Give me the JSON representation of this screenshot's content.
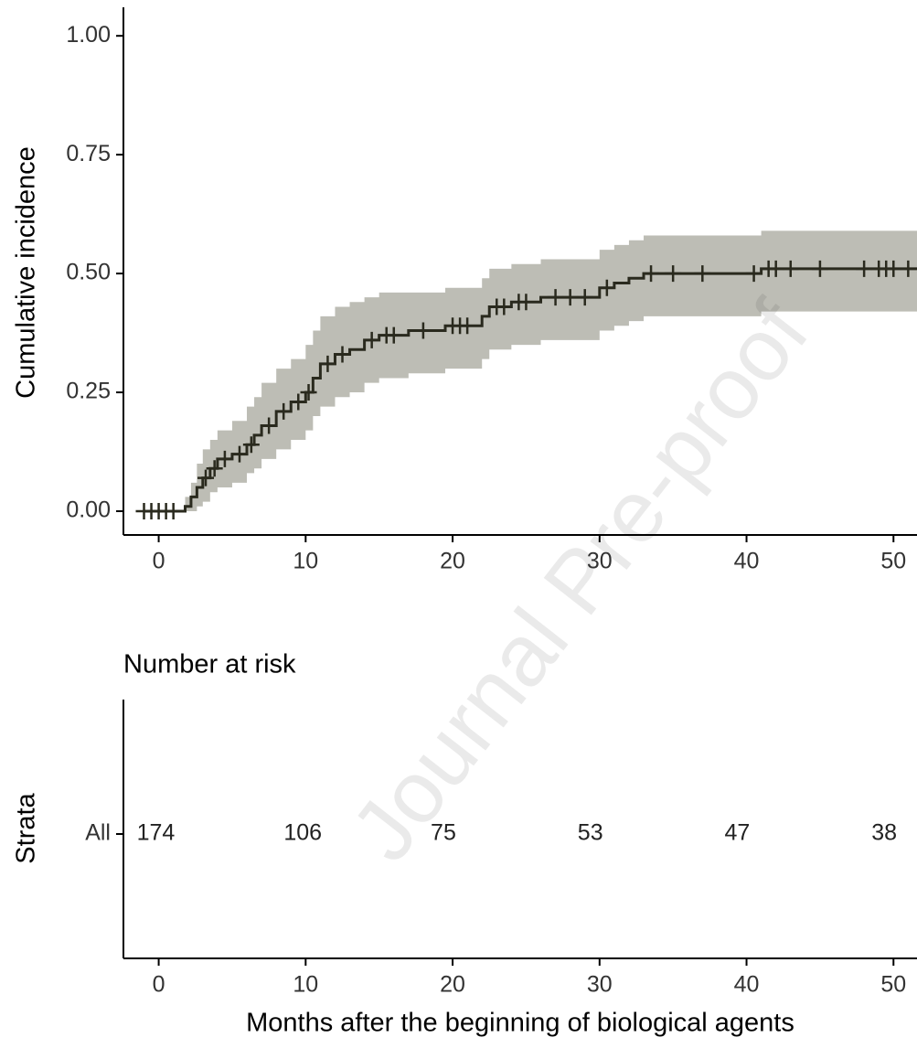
{
  "watermark": "Journal Pre-proof",
  "chart_data": [
    {
      "type": "step",
      "ylabel": "Cumulative incidence",
      "xlim": [
        -2.4,
        51.6
      ],
      "ylim": [
        -0.05,
        1.06
      ],
      "xticks": [
        0,
        10,
        20,
        30,
        40,
        50
      ],
      "yticks": [
        {
          "value": 0,
          "label": "0.00"
        },
        {
          "value": 0.25,
          "label": "0.25"
        },
        {
          "value": 0.5,
          "label": "0.50"
        },
        {
          "value": 0.75,
          "label": "0.75"
        },
        {
          "value": 1,
          "label": "1.00"
        }
      ],
      "line_color": "#2a2a1e",
      "band_color": "#bdbdb5",
      "x": [
        -1,
        1.8,
        2.2,
        2.6,
        3,
        3.5,
        4,
        5,
        6,
        6.5,
        7,
        8,
        9,
        10,
        10.5,
        11,
        12,
        13,
        14,
        15,
        17,
        19.5,
        22,
        22.5,
        24,
        26,
        30,
        31,
        32,
        33,
        41
      ],
      "estimate": [
        0,
        0.01,
        0.03,
        0.05,
        0.07,
        0.09,
        0.11,
        0.12,
        0.14,
        0.16,
        0.18,
        0.21,
        0.23,
        0.25,
        0.28,
        0.31,
        0.33,
        0.34,
        0.36,
        0.37,
        0.38,
        0.39,
        0.41,
        0.43,
        0.44,
        0.45,
        0.47,
        0.48,
        0.49,
        0.5,
        0.51
      ],
      "lower": [
        0,
        0,
        0,
        0.01,
        0.02,
        0.04,
        0.05,
        0.06,
        0.08,
        0.09,
        0.11,
        0.13,
        0.15,
        0.17,
        0.2,
        0.22,
        0.24,
        0.25,
        0.27,
        0.28,
        0.29,
        0.3,
        0.32,
        0.34,
        0.35,
        0.36,
        0.38,
        0.39,
        0.4,
        0.41,
        0.42
      ],
      "upper": [
        0,
        0.03,
        0.06,
        0.1,
        0.13,
        0.15,
        0.17,
        0.19,
        0.22,
        0.24,
        0.27,
        0.3,
        0.32,
        0.35,
        0.38,
        0.41,
        0.43,
        0.44,
        0.45,
        0.46,
        0.46,
        0.47,
        0.49,
        0.51,
        0.52,
        0.53,
        0.55,
        0.56,
        0.57,
        0.58,
        0.59
      ],
      "censor_x": [
        -1,
        -0.5,
        0,
        0.5,
        1,
        3.2,
        3.8,
        4.5,
        5.5,
        6.3,
        7.5,
        8.5,
        9.5,
        10.2,
        11.5,
        12.5,
        14.5,
        15.5,
        16,
        18,
        20,
        20.5,
        21,
        23,
        23.5,
        24.5,
        25,
        27,
        28,
        29,
        30.5,
        33.5,
        35,
        37,
        40.5,
        41.5,
        42,
        43,
        45,
        48,
        49,
        49.5,
        50,
        51
      ],
      "censor_y": [
        0,
        0,
        0,
        0,
        0,
        0.07,
        0.09,
        0.11,
        0.12,
        0.14,
        0.18,
        0.21,
        0.23,
        0.25,
        0.31,
        0.33,
        0.36,
        0.37,
        0.37,
        0.38,
        0.39,
        0.39,
        0.39,
        0.43,
        0.43,
        0.44,
        0.44,
        0.45,
        0.45,
        0.45,
        0.47,
        0.5,
        0.5,
        0.5,
        0.5,
        0.51,
        0.51,
        0.51,
        0.51,
        0.51,
        0.51,
        0.51,
        0.51,
        0.51
      ]
    },
    {
      "type": "risk_table",
      "title": "Number at risk",
      "ylabel": "Strata",
      "xlabel": "Months after the beginning of biological agents",
      "xlim": [
        -2.4,
        51.6
      ],
      "xticks": [
        0,
        10,
        20,
        30,
        40,
        50
      ],
      "stratum": "All",
      "x": [
        0,
        10,
        20,
        30,
        40,
        50
      ],
      "values": [
        174,
        106,
        75,
        53,
        47,
        38
      ]
    }
  ]
}
